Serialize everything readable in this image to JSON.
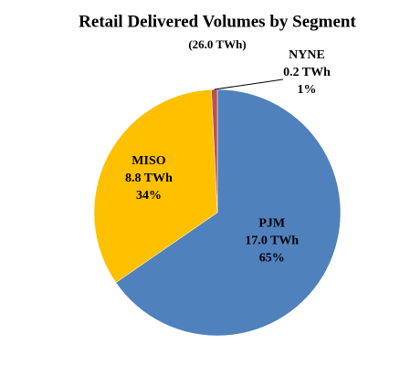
{
  "chart_data": {
    "type": "pie",
    "title": "Retail Delivered Volumes by Segment",
    "subtitle": "(26.0 TWh)",
    "categories": [
      "PJM",
      "MISO",
      "NYNE"
    ],
    "values": [
      17.0,
      8.8,
      0.2
    ],
    "value_labels": [
      "17.0 TWh",
      "8.8 TWh",
      "0.2 TWh"
    ],
    "percent_labels": [
      "65%",
      "34%",
      "1%"
    ],
    "colors": [
      "#4f81bd",
      "#ffc000",
      "#c0504d"
    ]
  }
}
